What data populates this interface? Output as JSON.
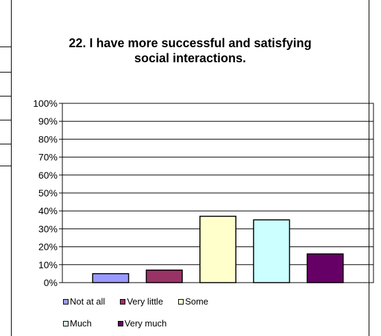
{
  "chart_data": {
    "type": "bar",
    "title_line1": "22. I have more successful and satisfying",
    "title_line2": "social interactions.",
    "categories": [
      "Not at all",
      "Very little",
      "Some",
      "Much",
      "Very much"
    ],
    "values": [
      5,
      7,
      37,
      35,
      16
    ],
    "colors": [
      "#9999ff",
      "#993366",
      "#ffffcc",
      "#ccffff",
      "#660066"
    ],
    "ylim": [
      0,
      100
    ],
    "ytick_labels": [
      "0%",
      "10%",
      "20%",
      "30%",
      "40%",
      "50%",
      "60%",
      "70%",
      "80%",
      "90%",
      "100%"
    ],
    "grid": true,
    "legend": {
      "placement": "bottom",
      "row1": [
        "Not at all",
        "Very little",
        "Some"
      ],
      "row2": [
        "Much",
        "Very much"
      ]
    }
  }
}
